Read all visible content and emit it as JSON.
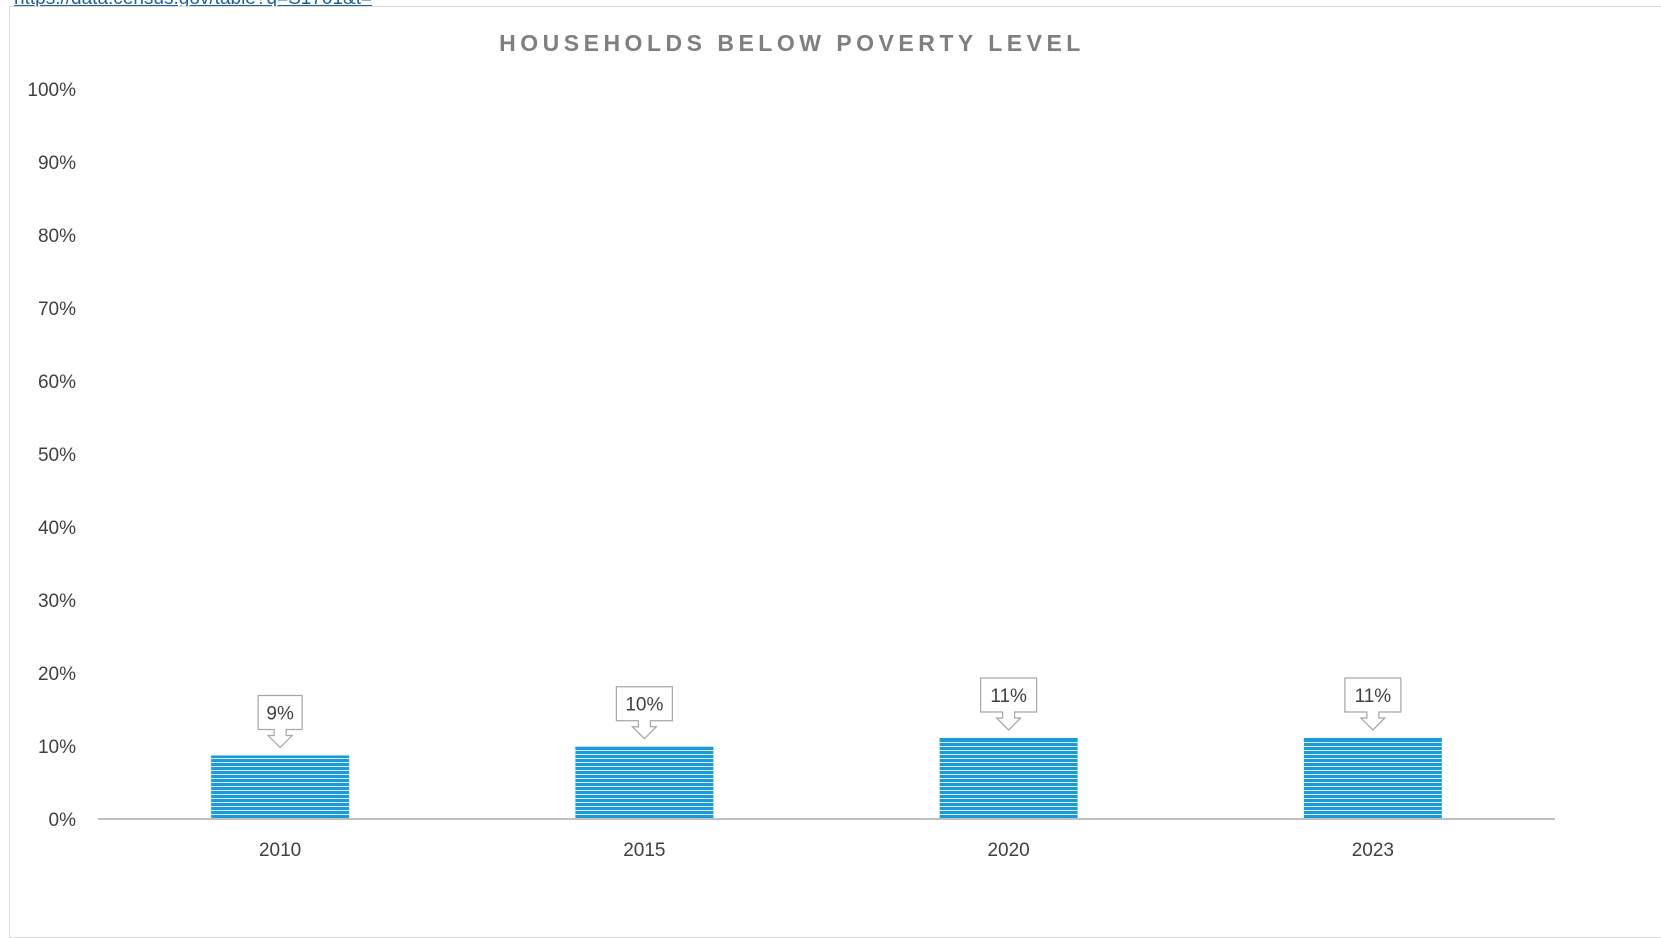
{
  "source_link": "https://data.census.gov/table?q=S1701&t=",
  "colors": {
    "bar": "#1a9bd7",
    "bar_stripe": "#ffffff",
    "axis": "#bfbfbf",
    "title": "#7f7f7f",
    "text": "#404040"
  },
  "chart_data": {
    "type": "bar",
    "title": "HOUSEHOLDS BELOW POVERTY LEVEL",
    "categories": [
      "2010",
      "2015",
      "2020",
      "2023"
    ],
    "values": [
      0.087,
      0.099,
      0.111,
      0.111
    ],
    "data_labels": [
      "9%",
      "10%",
      "11%",
      "11%"
    ],
    "ylim": [
      0,
      1
    ],
    "yticks": [
      "0%",
      "10%",
      "20%",
      "30%",
      "40%",
      "50%",
      "60%",
      "70%",
      "80%",
      "90%",
      "100%"
    ],
    "xlabel": "",
    "ylabel": "",
    "grid": false,
    "legend": "none",
    "bar_pattern": "horizontal-stripes",
    "data_label_style": "down-arrow-callout"
  }
}
